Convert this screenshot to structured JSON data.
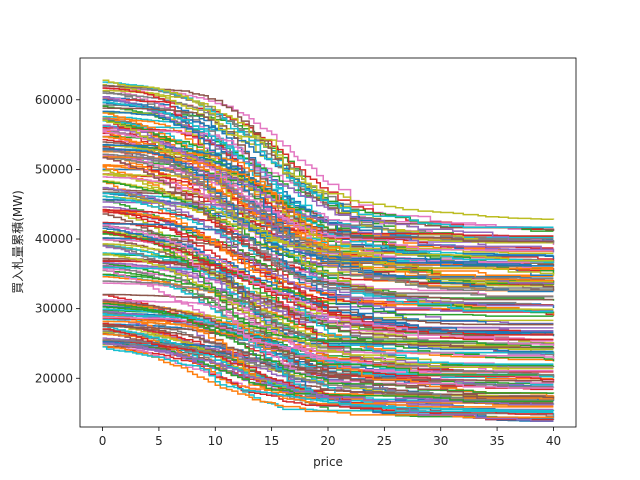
{
  "chart_data": {
    "type": "line",
    "title": "",
    "xlabel": "price",
    "ylabel": "買入札量累積(MW)",
    "xlim": [
      -2,
      42
    ],
    "ylim": [
      13000,
      66000
    ],
    "xticks": [
      0,
      5,
      10,
      15,
      20,
      25,
      30,
      35,
      40
    ],
    "yticks": [
      20000,
      30000,
      40000,
      50000,
      60000
    ],
    "grid": false,
    "legend": "none",
    "step": "post",
    "palette": [
      "#1f77b4",
      "#ff7f0e",
      "#2ca02c",
      "#d62728",
      "#9467bd",
      "#8c564b",
      "#e377c2",
      "#7f7f7f",
      "#bcbd22",
      "#17becf"
    ],
    "series_count": 200,
    "x": [
      0,
      1,
      2,
      3,
      4,
      5,
      6,
      7,
      8,
      9,
      10,
      11,
      12,
      13,
      14,
      15,
      16,
      17,
      18,
      19,
      20,
      22,
      24,
      26,
      28,
      30,
      32,
      34,
      36,
      38,
      40
    ],
    "series_profiles": {
      "start_range": [
        24000,
        63000
      ],
      "end_range": [
        15500,
        43000
      ],
      "top_curve": {
        "x": [
          0,
          1,
          2,
          3,
          4,
          5,
          6,
          7,
          8,
          9,
          10,
          11,
          12,
          13,
          14,
          15,
          16,
          17,
          18,
          19,
          20,
          22,
          24,
          26,
          28,
          30,
          32,
          34,
          36,
          38,
          40
        ],
        "y": [
          62800,
          62400,
          62000,
          61900,
          61800,
          61500,
          61000,
          60500,
          59800,
          58500,
          57000,
          55000,
          54800,
          54600,
          54400,
          54200,
          49500,
          49000,
          48000,
          47000,
          46500,
          45500,
          45000,
          44500,
          44000,
          43800,
          43500,
          43200,
          43000,
          42900,
          42800
        ]
      },
      "bottom_curve": {
        "x": [
          0,
          1,
          2,
          3,
          4,
          5,
          6,
          7,
          8,
          9,
          10,
          11,
          12,
          13,
          14,
          15,
          16,
          17,
          18,
          19,
          20,
          22,
          24,
          26,
          28,
          30,
          32,
          34,
          36,
          38,
          40
        ],
        "y": [
          24500,
          24000,
          23800,
          23500,
          23200,
          23000,
          22500,
          22000,
          21800,
          21200,
          19500,
          18800,
          18500,
          18200,
          18000,
          17800,
          17500,
          17300,
          17000,
          16800,
          16500,
          16200,
          16000,
          15800,
          15700,
          15600,
          15500,
          15500,
          15400,
          15400,
          15300
        ]
      }
    }
  }
}
